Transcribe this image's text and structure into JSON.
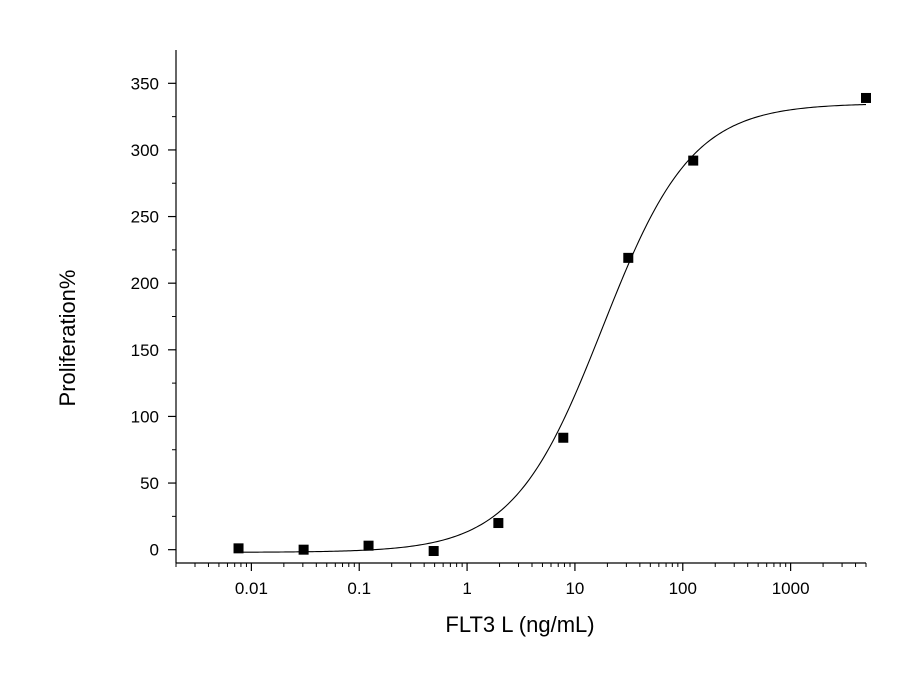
{
  "chart_data": {
    "type": "scatter",
    "title": "",
    "xlabel": "FLT3 L (ng/mL)",
    "ylabel": "Proliferation%",
    "xscale": "log",
    "xlim": [
      0.002,
      5000
    ],
    "ylim": [
      -10,
      375
    ],
    "grid": false,
    "x_ticks": [
      0.01,
      0.1,
      1,
      10,
      100,
      1000
    ],
    "x_tick_labels": [
      "0.01",
      "0.1",
      "1",
      "10",
      "100",
      "1000"
    ],
    "y_ticks": [
      0,
      50,
      100,
      150,
      200,
      250,
      300,
      350
    ],
    "y_tick_labels": [
      "0",
      "50",
      "100",
      "150",
      "200",
      "250",
      "300",
      "350"
    ],
    "series": [
      {
        "type": "scatter",
        "marker": "square",
        "color": "#000000",
        "x": [
          0.0076,
          0.0305,
          0.122,
          0.49,
          1.95,
          7.8,
          31.25,
          125,
          5000
        ],
        "y": [
          1,
          0,
          3,
          -1,
          20,
          84,
          219,
          292,
          339
        ]
      },
      {
        "type": "line",
        "color": "#000000",
        "fit": "4PL",
        "bottom": -2,
        "top": 335,
        "ec50": 18,
        "hill": 1.05
      }
    ]
  }
}
